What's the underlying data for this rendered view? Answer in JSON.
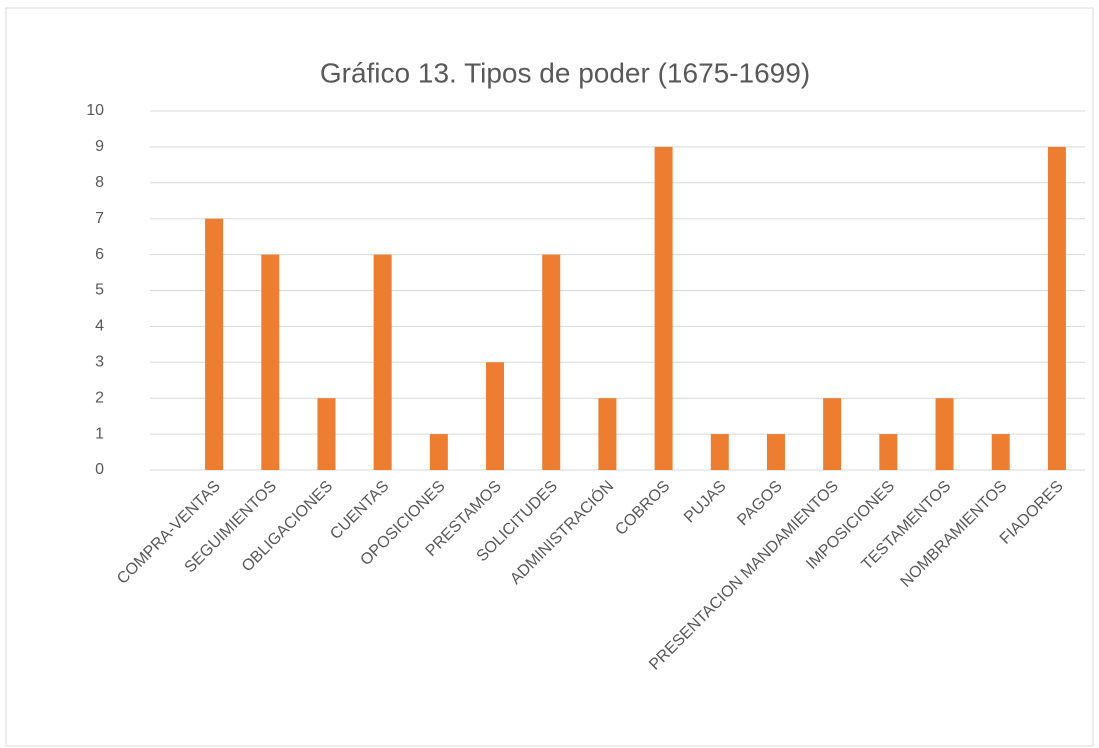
{
  "chart_data": {
    "type": "bar",
    "title": "Gráfico 13. Tipos de poder (1675-1699)",
    "categories": [
      "COMPRA-VENTAS",
      "SEGUIMIENTOS",
      "OBLIGACIONES",
      "CUENTAS",
      "OPOSICIONES",
      "PRESTAMOS",
      "SOLICITUDES",
      "ADMINISTRACIÓN",
      "COBROS",
      "PUJAS",
      "PAGOS",
      "PRESENTACION MANDAMIENTOS",
      "IMPOSICIONES",
      "TESTAMENTOS",
      "NOMBRAMIENTOS",
      "FIADORES"
    ],
    "values": [
      7,
      6,
      2,
      6,
      1,
      3,
      6,
      2,
      9,
      1,
      1,
      2,
      1,
      2,
      1,
      9
    ],
    "color": "#ed7d31",
    "ylim": [
      0,
      10
    ],
    "yticks": [
      0,
      1,
      2,
      3,
      4,
      5,
      6,
      7,
      8,
      9,
      10
    ],
    "grid": true
  }
}
